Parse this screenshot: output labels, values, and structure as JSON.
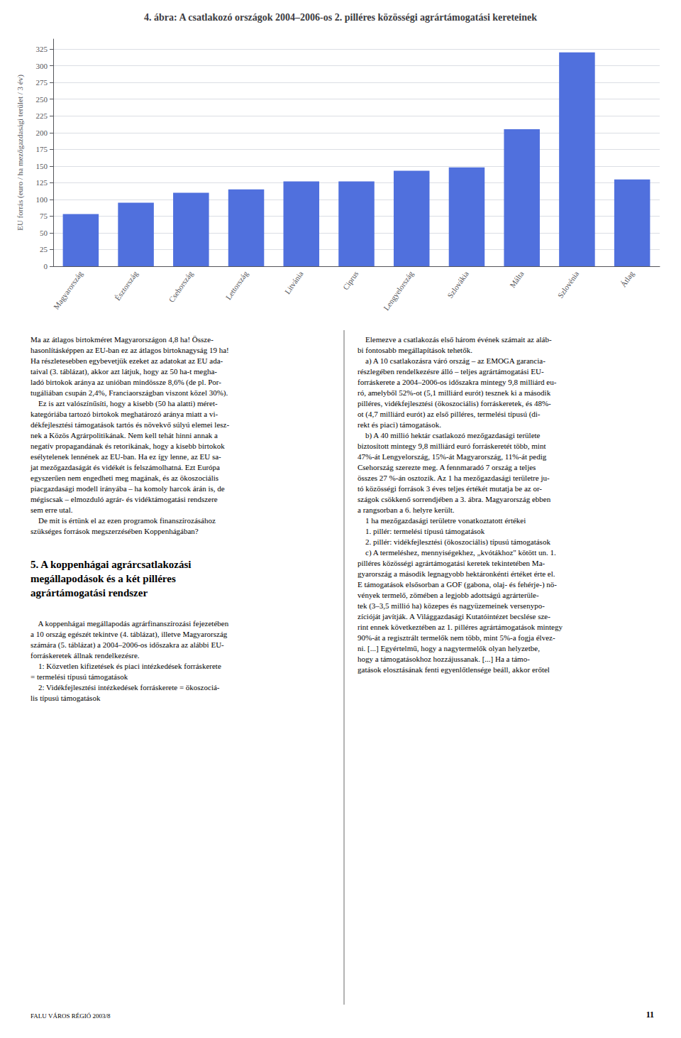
{
  "chart_data": {
    "type": "bar",
    "title": "4. ábra: A csatlakozó országok 2004–2006-os 2. pilléres közösségi agrártámogatási kereteinek",
    "ylabel": "EU forrás (euro / ha mezőgazdasági terület / 3 év)",
    "categories": [
      "Magyarország",
      "Észtország",
      "Csehország",
      "Lettország",
      "Litvánia",
      "Ciprus",
      "Lengyelország",
      "Szlovákia",
      "Málta",
      "Szlovénia",
      "Átlag"
    ],
    "values": [
      78,
      95,
      110,
      115,
      127,
      127,
      143,
      148,
      205,
      320,
      130
    ],
    "ylim": [
      0,
      340
    ],
    "yticks": [
      0,
      25,
      50,
      75,
      100,
      125,
      150,
      175,
      200,
      225,
      250,
      275,
      300,
      325
    ],
    "grid": true,
    "annotations": [
      "Ma az átlagos birtokméret Magyarországon 4,8 ha! Össze-\nhasonlításképpen az EU-ban ez az átlagos birtoknagyság 19 ha!\nHa részletesebben egybevetjük ezeket az adatokat az EU ada-\ntaival (3. táblázat), akkor azt látjuk, hogy az 50 ha-t megha-\nladó birtokok aránya az unióban mindössze 8,6% (de pl. Por-\ntugáliában csupán 2,4%, Franciaországban viszont közel 30%).\n    Ez is azt valószínűsíti, hogy a kisebb (50 ha alatti) méret-\nkategóriába tartozó birtokok meghatározó aránya miatt a vi-\ndékfejlesztési támogatások tartós és növekvő súlyú elemei lesz-\nnek a Közös Agrárpolitikának. Nem kell tehát hinni annak a\nnegatív propagandának és retorikának, hogy a kisebb birtokok\nesélytelenek lennének az EU-ban. Ha ez így lenne, az EU sa-\njat mezőgazdaságát és vidékét is felszámolhatná. Ezt Európa\negyszerűen nem engedheti meg magának, és az ökoszociális\npiacgazdasági modell irányába – ha komoly harcok árán is, de\nmégiscsak – elmozduló agrár- és vidéktámogatási rendszere\nsem erre utal.\n    De mit is értünk el az ezen programok finanszírozásához\nszükséges források megszerzésében Koppenhágában?",
      "5. A koppenhágai agrárcsatlakozási\nmegállapodások és a két pilléres\nagrártámogatási rendszer",
      "    A koppenhágai megállapodás agrárfinanszírozási fejezetében\na 10 ország egészét tekintve (4. táblázat), illetve Magyarország\nszámára (5. táblázat) a 2004–2006-os időszakra az alábbi EU-\nforráskeretek állnak rendelkezésre.\n    1: Közvetlen kifizetések és piaci intézkedések forráskerete\n= termelési típusú támogatások\n    2: Vidékfejlesztési intézkedések forráskerete = ökoszociá-\nlis típusú támogatások",
      "    Elemezve a csatlakozás első három évének számait az aláb-\nbi fontosabb megállapítások tehetők.\n    a) A 10 csatlakozásra váró ország – az EMOGA garancia-\nrészlegében rendelkezésre álló – teljes agrártámogatási EU-\nforráskerete a 2004–2006-os időszakra mintegy 9,8 milliárd eu-\nró, amelyből 52%-ot (5,1 milliárd eurót) tesznek ki a második\npilléres, vidékfejlesztési (ökoszociális) forráskeretek, és 48%-\not (4,7 milliárd eurót) az első pilléres, termelési típusú (di-\nrekt és piaci) támogatások.\n    b) A 40 millió hektár csatlakozó mezőgazdasági területe\nbiztosított mintegy 9,8 milliárd euró forráskeretét több, mint\n47%-át Lengyelország, 15%-át Magyarország, 11%-át pedig\nCsehország szerezte meg. A fennmaradó 7 ország a teljes\nösszes 27 %-án osztozik. Az 1 ha mezőgazdasági területre ju-\ntó közösségi források 3 éves teljes értékét mutatja be az or-\nszágok csökkenő sorrendjében a 3. ábra. Magyarország ebben\na rangsorban a 6. helyre került.\n    1 ha mezőgazdasági területre vonatkoztatott értékei\n    1. pillér: termelési típusú támogatások\n    2. pillér: vidékfejlesztési (ökoszociális) típusú támogatások\n    c) A termeléshez, mennyiségekhez, „kvótákhoz\" kötött un. 1.\npilléres közösségi agrártámogatási keretek tekintetében Ma-\ngyarország a második legnagyobb hektáronkénti értéket érte el.\nE támogatások elsősorban a GOF (gabona, olaj- és fehérje-) nö-\nvények termelő, zömében a legjobb adottságú agrárterüle-\ntek (3–3,5 millió ha) közepes és nagyüzemeinek versenypo-\nzícióját javítják. A Világgazdasági Kutatóintézet becslése sze-\nrint ennek következtében az 1. pilléres agrártámogatások mintegy\n90%-át a regisztrált termelők nem több, mint 5%-a fogja élvez-\nni. [...] Egyértelmű, hogy a nagytermelők olyan helyzetbe,\nhogy a támogatásokhoz hozzájussanak. [...] Ha a támo-\ngatások elosztásának fenti egyenlőtlensége beáll, akkor erőtel",
      "FALU VÁROS RÉGIÓ 2003/8",
      "11"
    ]
  }
}
